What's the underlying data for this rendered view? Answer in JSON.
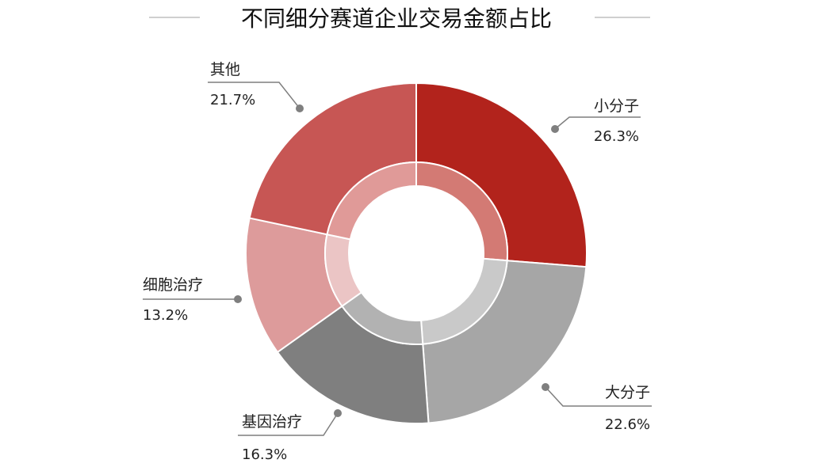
{
  "chart_data": {
    "type": "pie",
    "title": "不同细分赛道企业交易金额占比",
    "categories": [
      "小分子",
      "大分子",
      "基因治疗",
      "细胞治疗",
      "其他"
    ],
    "values": [
      26.3,
      22.6,
      16.3,
      13.2,
      21.7
    ],
    "value_labels": [
      "26.3%",
      "22.6%",
      "16.3%",
      "13.2%",
      "21.7%"
    ],
    "unit": "%",
    "style": "donut",
    "start_angle_deg": 0,
    "direction": "clockwise",
    "colors": {
      "小分子": {
        "outer": "#B2231C",
        "inner": "#D37A74"
      },
      "大分子": {
        "outer": "#A6A6A6",
        "inner": "#C9C9C9"
      },
      "基因治疗": {
        "outer": "#7F7F7F",
        "inner": "#B2B2B2"
      },
      "细胞治疗": {
        "outer": "#DD9B9B",
        "inner": "#EBC5C5"
      },
      "其他": {
        "outer": "#C75654",
        "inner": "#E09A98"
      },
      "leader": "#7F7F7F",
      "title_rule": "#BFBFBF"
    }
  }
}
